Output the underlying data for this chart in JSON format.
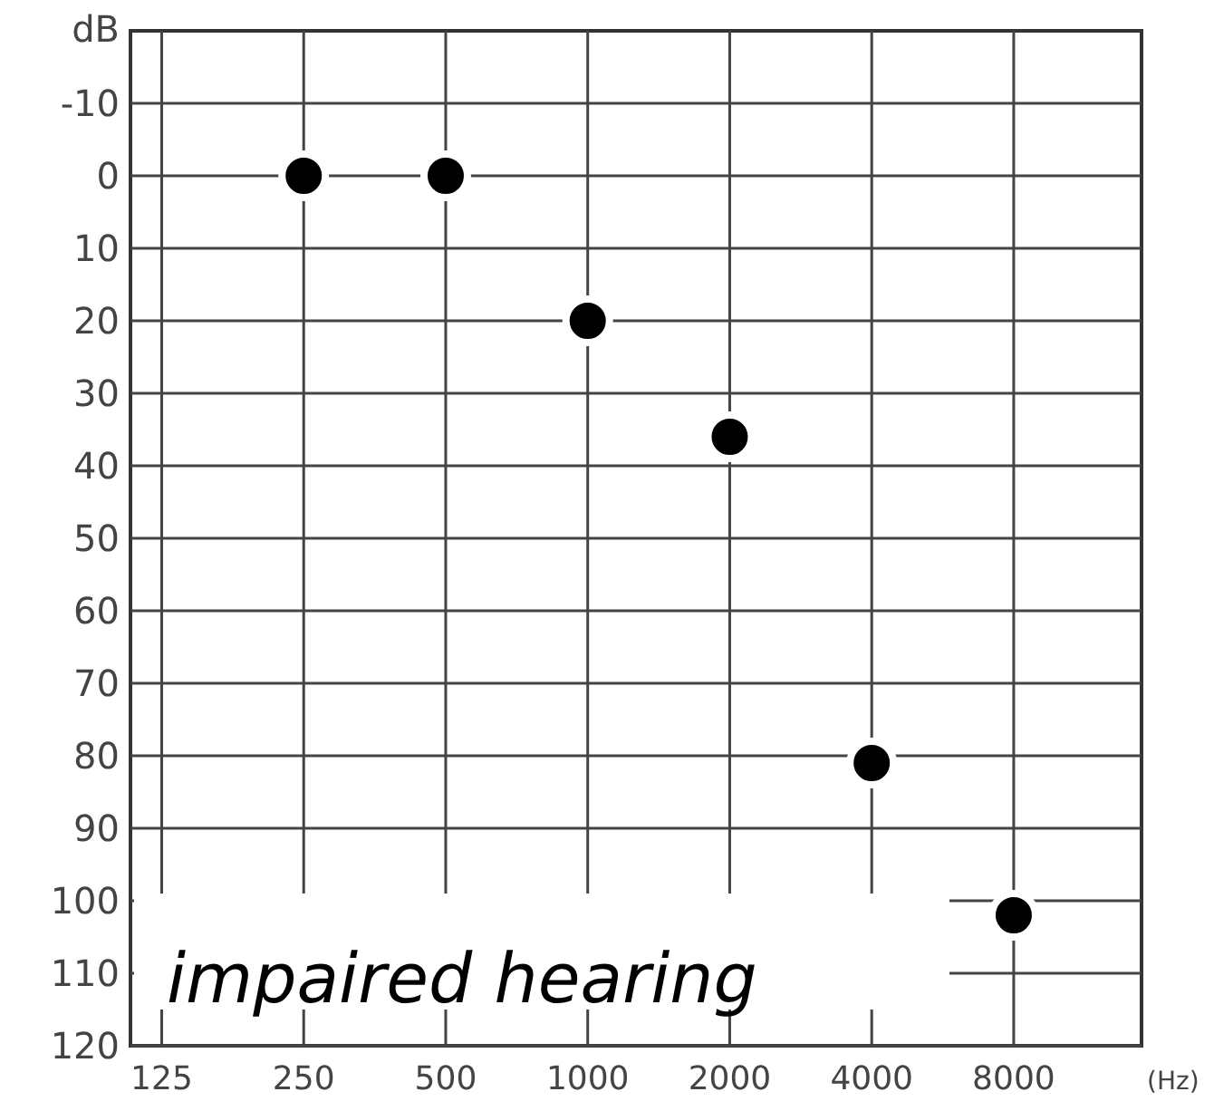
{
  "chart_data": {
    "type": "scatter",
    "ylabel": "dB",
    "xlabel": "(Hz)",
    "categories": [
      "125",
      "250",
      "500",
      "1000",
      "2000",
      "4000",
      "8000"
    ],
    "series": [
      {
        "color": "#000000",
        "values": [
          null,
          0,
          0,
          20,
          36,
          81,
          102
        ]
      }
    ],
    "ylim": [
      120,
      -20
    ],
    "yticks": [
      -10,
      0,
      10,
      20,
      30,
      40,
      50,
      60,
      70,
      80,
      90,
      100,
      110,
      120
    ],
    "grid": true,
    "marker": "circle",
    "annotations": [
      "impaired hearing"
    ]
  }
}
